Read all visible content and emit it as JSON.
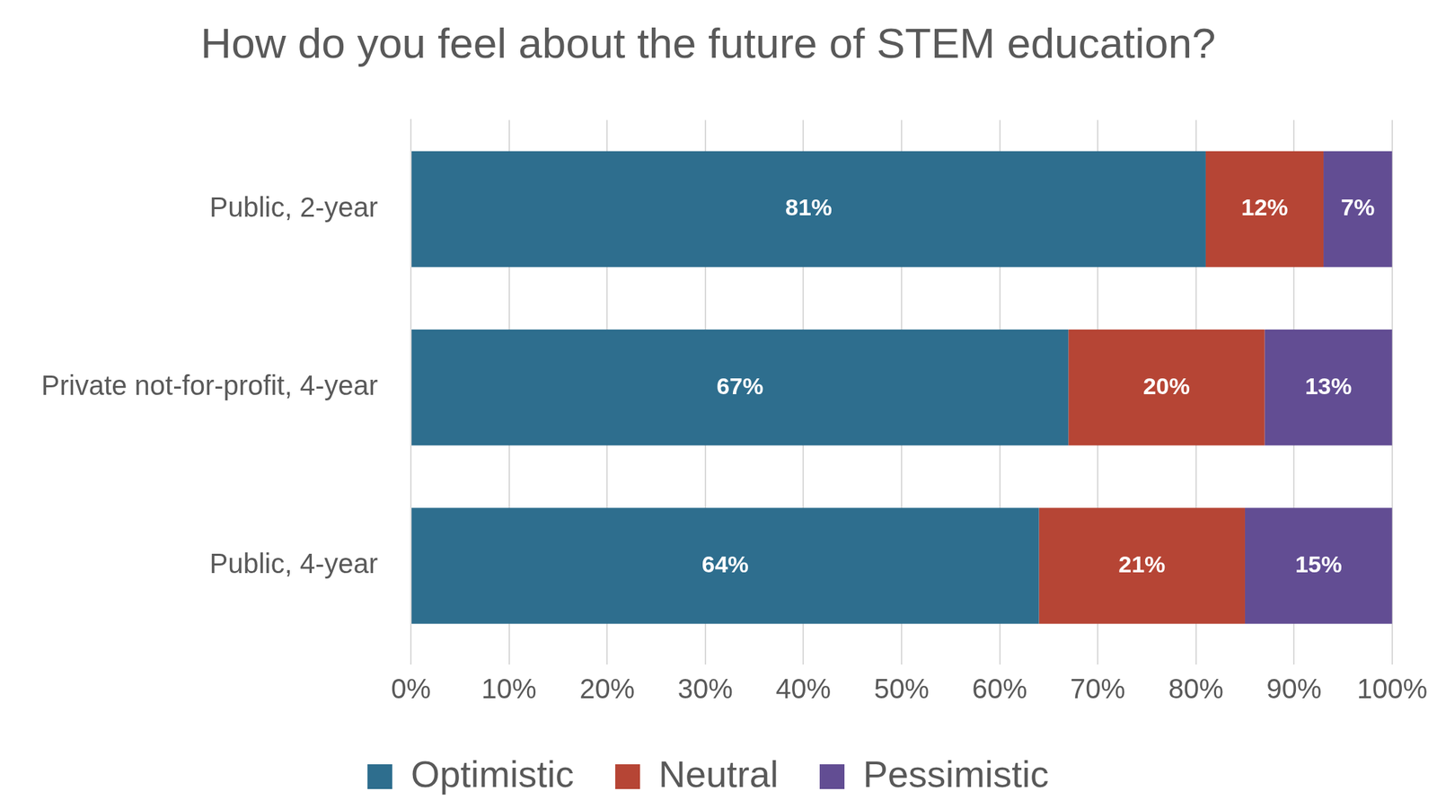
{
  "chart_data": {
    "type": "bar",
    "title": "How do you feel about the future of STEM education?",
    "orientation": "horizontal",
    "stacked": true,
    "data_labels": true,
    "grid": true,
    "legend": "bottom",
    "categories": [
      "Public, 2-year",
      "Private not-for-profit, 4-year",
      "Public, 4-year"
    ],
    "series": [
      {
        "name": "Optimistic",
        "color": "#2e6e8e",
        "values": [
          81,
          67,
          64
        ],
        "value_labels": [
          "81%",
          "67%",
          "64%"
        ]
      },
      {
        "name": "Neutral",
        "color": "#b64535",
        "values": [
          12,
          20,
          21
        ],
        "value_labels": [
          "12%",
          "20%",
          "21%"
        ]
      },
      {
        "name": "Pessimistic",
        "color": "#624d93",
        "values": [
          7,
          13,
          15
        ],
        "value_labels": [
          "7%",
          "13%",
          "15%"
        ]
      }
    ],
    "xlim": [
      0,
      100
    ],
    "xticks": [
      {
        "value": 0,
        "label": "0%"
      },
      {
        "value": 10,
        "label": "10%"
      },
      {
        "value": 20,
        "label": "20%"
      },
      {
        "value": 30,
        "label": "30%"
      },
      {
        "value": 40,
        "label": "40%"
      },
      {
        "value": 50,
        "label": "50%"
      },
      {
        "value": 60,
        "label": "60%"
      },
      {
        "value": 70,
        "label": "70%"
      },
      {
        "value": 80,
        "label": "80%"
      },
      {
        "value": 90,
        "label": "90%"
      },
      {
        "value": 100,
        "label": "100%"
      }
    ]
  }
}
